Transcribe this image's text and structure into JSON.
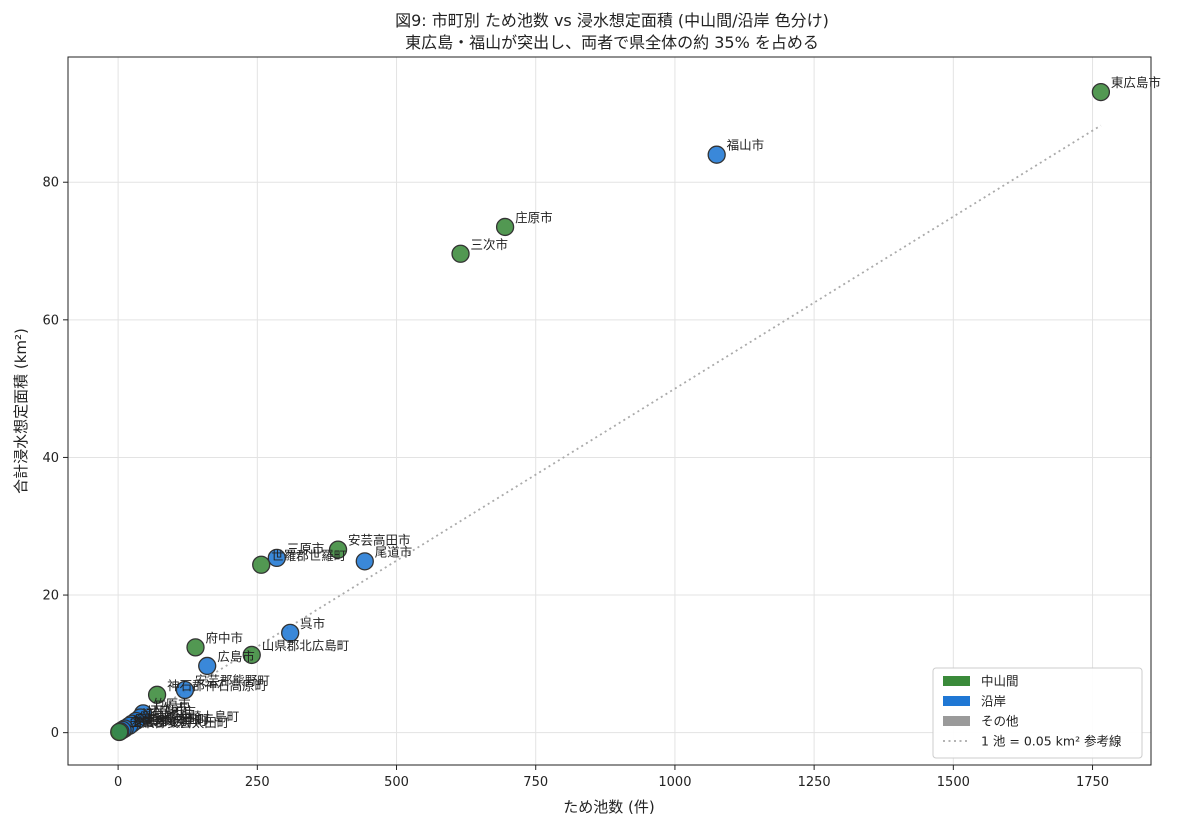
{
  "chart_data": {
    "type": "scatter",
    "title": "図9: 市町別 ため池数 vs 浸水想定面積 (中山間/沿岸 色分け)",
    "subtitle": "東広島・福山が突出し、両者で県全体の約 35% を占める",
    "xlabel": "ため池数 (件)",
    "ylabel": "合計浸水想定面積 (km²)",
    "xlim": [
      -90,
      1855
    ],
    "ylim": [
      -4.7,
      98.2
    ],
    "xticks": [
      0,
      250,
      500,
      750,
      1000,
      1250,
      1500,
      1750
    ],
    "yticks": [
      0,
      20,
      40,
      60,
      80
    ],
    "xtick_labels": [
      "0",
      "250",
      "500",
      "750",
      "1000",
      "1250",
      "1500",
      "1750"
    ],
    "ytick_labels": [
      "0",
      "20",
      "40",
      "60",
      "80"
    ],
    "grid": true,
    "legend_position": "lower-right",
    "colors": {
      "中山間": "#3a8a3a",
      "沿岸": "#1f77d4",
      "その他": "#9a9a9a",
      "reference": "#aaaaaa"
    },
    "legend": [
      {
        "label": "中山間",
        "kind": "patch",
        "color": "#3a8a3a"
      },
      {
        "label": "沿岸",
        "kind": "patch",
        "color": "#1f77d4"
      },
      {
        "label": "その他",
        "kind": "patch",
        "color": "#9a9a9a"
      },
      {
        "label": "1 池 = 0.05 km² 参考線",
        "kind": "line",
        "color": "#aaaaaa"
      }
    ],
    "reference_line": {
      "slope": 0.05,
      "x": [
        0,
        1765
      ]
    },
    "points": [
      {
        "label": "東広島市",
        "x": 1765,
        "y": 93.1,
        "group": "中山間"
      },
      {
        "label": "福山市",
        "x": 1075,
        "y": 84.0,
        "group": "沿岸"
      },
      {
        "label": "庄原市",
        "x": 695,
        "y": 73.5,
        "group": "中山間"
      },
      {
        "label": "三次市",
        "x": 615,
        "y": 69.6,
        "group": "中山間"
      },
      {
        "label": "安芸高田市",
        "x": 395,
        "y": 26.6,
        "group": "中山間"
      },
      {
        "label": "尾道市",
        "x": 443,
        "y": 24.9,
        "group": "沿岸"
      },
      {
        "label": "三原市",
        "x": 285,
        "y": 25.4,
        "group": "沿岸"
      },
      {
        "label": "世羅郡世羅町",
        "x": 257,
        "y": 24.4,
        "group": "中山間"
      },
      {
        "label": "呉市",
        "x": 309,
        "y": 14.5,
        "group": "沿岸"
      },
      {
        "label": "府中市",
        "x": 139,
        "y": 12.4,
        "group": "中山間"
      },
      {
        "label": "山県郡北広島町",
        "x": 240,
        "y": 11.3,
        "group": "中山間"
      },
      {
        "label": "広島市",
        "x": 160,
        "y": 9.7,
        "group": "沿岸"
      },
      {
        "label": "安芸郡熊野町",
        "x": 120,
        "y": 6.2,
        "group": "沿岸"
      },
      {
        "label": "神石郡神石高原町",
        "x": 70,
        "y": 5.5,
        "group": "中山間"
      },
      {
        "label": "竹原市",
        "x": 45,
        "y": 2.8,
        "group": "沿岸"
      },
      {
        "label": "大竹市",
        "x": 40,
        "y": 2.2,
        "group": "沿岸"
      },
      {
        "label": "廿日市市",
        "x": 32,
        "y": 1.7,
        "group": "沿岸"
      },
      {
        "label": "江田島市",
        "x": 25,
        "y": 1.3,
        "group": "沿岸"
      },
      {
        "label": "豊田郡大崎上島町",
        "x": 20,
        "y": 1.0,
        "group": "沿岸"
      },
      {
        "label": "安芸郡海田町",
        "x": 12,
        "y": 0.6,
        "group": "沿岸"
      },
      {
        "label": "安芸郡府中町",
        "x": 8,
        "y": 0.4,
        "group": "沿岸"
      },
      {
        "label": "安芸郡坂町",
        "x": 4,
        "y": 0.2,
        "group": "沿岸"
      },
      {
        "label": "山県郡安芸太田町",
        "x": 2,
        "y": 0.1,
        "group": "中山間"
      }
    ]
  }
}
